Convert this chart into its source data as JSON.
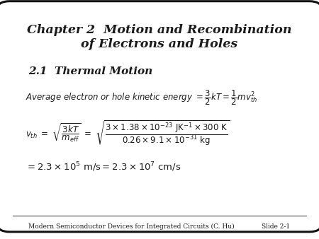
{
  "title_line1": "Chapter 2  Motion and Recombination",
  "title_line2": "of Electrons and Holes",
  "section": "2.1  Thermal Motion",
  "footer_left": "Modern Semiconductor Devices for Integrated Circuits (C. Hu)",
  "footer_right": "Slide 2-1",
  "bg_color": "#ffffff",
  "border_color": "#111111",
  "text_color": "#1a1a1a",
  "title_fontsize": 12.5,
  "section_fontsize": 11.0,
  "body_fontsize": 8.5,
  "result_fontsize": 9.5,
  "footer_fontsize": 6.5
}
